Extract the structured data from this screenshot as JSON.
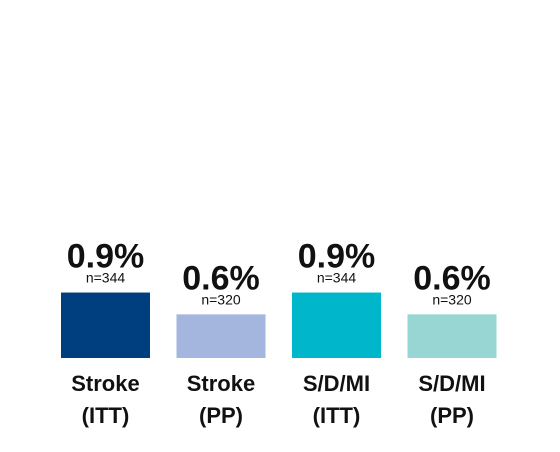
{
  "chart_data": {
    "type": "bar",
    "categories": [
      [
        "Stroke",
        "(ITT)"
      ],
      [
        "Stroke",
        "(PP)"
      ],
      [
        "S/D/MI",
        "(ITT)"
      ],
      [
        "S/D/MI",
        "(PP)"
      ]
    ],
    "values": [
      0.9,
      0.6,
      0.9,
      0.6
    ],
    "value_labels": [
      "0.9%",
      "0.6%",
      "0.9%",
      "0.6%"
    ],
    "n_labels": [
      "n=344",
      "n=320",
      "n=344",
      "n=320"
    ],
    "colors": [
      "#003f7f",
      "#a5b6de",
      "#00b6cb",
      "#97d6d2"
    ],
    "title": "",
    "xlabel": "",
    "ylabel": "",
    "ylim": [
      0,
      2.2
    ],
    "grid": false,
    "legend": "none"
  }
}
